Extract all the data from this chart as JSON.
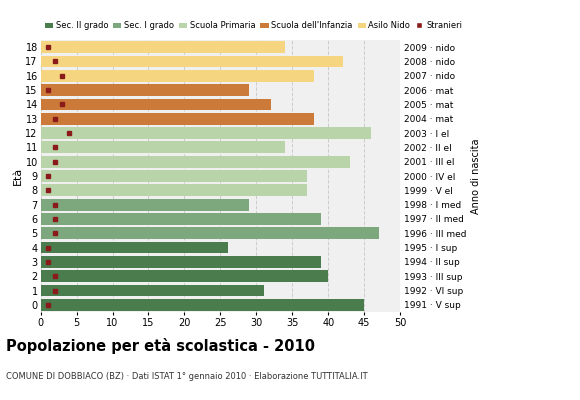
{
  "title": "Popolazione per età scolastica - 2010",
  "subtitle": "COMUNE DI DOBBIACO (BZ) · Dati ISTAT 1° gennaio 2010 · Elaborazione TUTTITALIA.IT",
  "ylabel": "Età",
  "ylabel2": "Anno di nascita",
  "xlim": [
    0,
    50
  ],
  "xticks": [
    0,
    5,
    10,
    15,
    20,
    25,
    30,
    35,
    40,
    45,
    50
  ],
  "ages": [
    18,
    17,
    16,
    15,
    14,
    13,
    12,
    11,
    10,
    9,
    8,
    7,
    6,
    5,
    4,
    3,
    2,
    1,
    0
  ],
  "years": [
    "1991 · V sup",
    "1992 · VI sup",
    "1993 · III sup",
    "1994 · II sup",
    "1995 · I sup",
    "1996 · III med",
    "1997 · II med",
    "1998 · I med",
    "1999 · V el",
    "2000 · IV el",
    "2001 · III el",
    "2002 · II el",
    "2003 · I el",
    "2004 · mat",
    "2005 · mat",
    "2006 · mat",
    "2007 · nido",
    "2008 · nido",
    "2009 · nido"
  ],
  "bar_values": [
    45,
    31,
    40,
    39,
    26,
    47,
    39,
    29,
    37,
    37,
    43,
    34,
    46,
    38,
    32,
    29,
    38,
    42,
    34
  ],
  "stranieri_values": [
    1,
    2,
    2,
    1,
    1,
    2,
    2,
    2,
    1,
    1,
    2,
    2,
    4,
    2,
    3,
    1,
    3,
    2,
    1
  ],
  "bar_colors": [
    "#4a7c4e",
    "#4a7c4e",
    "#4a7c4e",
    "#4a7c4e",
    "#4a7c4e",
    "#7da87d",
    "#7da87d",
    "#7da87d",
    "#b8d4a8",
    "#b8d4a8",
    "#b8d4a8",
    "#b8d4a8",
    "#b8d4a8",
    "#cc7a3a",
    "#cc7a3a",
    "#cc7a3a",
    "#f5d580",
    "#f5d580",
    "#f5d580"
  ],
  "legend_labels": [
    "Sec. II grado",
    "Sec. I grado",
    "Scuola Primaria",
    "Scuola dell'Infanzia",
    "Asilo Nido",
    "Stranieri"
  ],
  "legend_colors": [
    "#4a7c4e",
    "#7da87d",
    "#b8d4a8",
    "#cc7a3a",
    "#f5d580",
    "#8b1a1a"
  ],
  "stranieri_color": "#8b1a1a",
  "grid_color": "#cccccc",
  "bg_color": "#f0f0f0"
}
